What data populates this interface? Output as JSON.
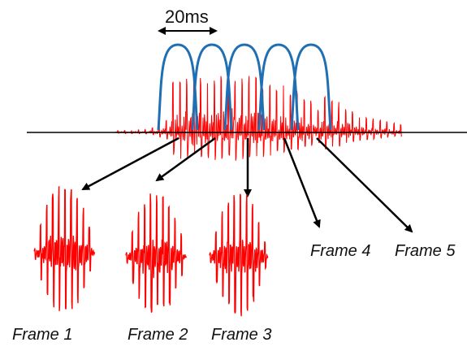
{
  "duration_label": "20ms",
  "frames": [
    {
      "label": "Frame 1",
      "extracted": true
    },
    {
      "label": "Frame 2",
      "extracted": true
    },
    {
      "label": "Frame 3",
      "extracted": true
    },
    {
      "label": "Frame 4",
      "extracted": false
    },
    {
      "label": "Frame 5",
      "extracted": false
    }
  ],
  "colors": {
    "waveform": "#ff0000",
    "window": "#1f6fb2",
    "arrow": "#000000",
    "axis": "#000000"
  }
}
